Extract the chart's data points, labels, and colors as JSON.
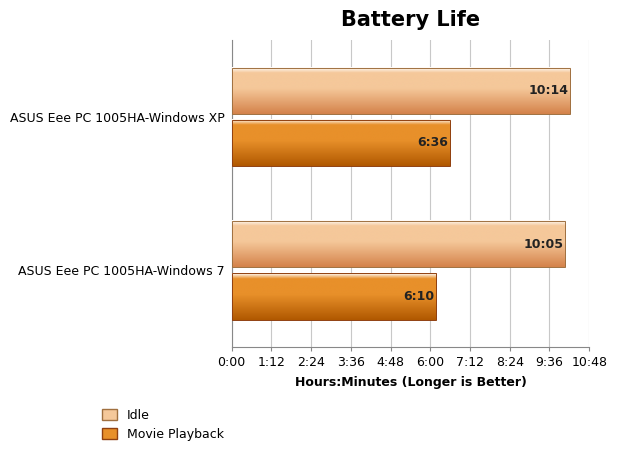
{
  "title": "Battery Life",
  "categories": [
    "ASUS Eee PC 1005HA-Windows XP",
    "ASUS Eee PC 1005HA-Windows 7"
  ],
  "series": [
    {
      "name": "Idle",
      "values_minutes": [
        614,
        605
      ],
      "labels": [
        "10:14",
        "10:05"
      ],
      "color_light": "#F5C89A",
      "color_dark": "#D4824A"
    },
    {
      "name": "Movie Playback",
      "values_minutes": [
        396,
        370
      ],
      "labels": [
        "6:36",
        "6:10"
      ],
      "color_light": "#E8902A",
      "color_dark": "#B05800"
    }
  ],
  "xlabel": "Hours:Minutes (Longer is Better)",
  "xlim_minutes": 648,
  "xticks_minutes": [
    0,
    72,
    144,
    216,
    288,
    360,
    432,
    504,
    576,
    648
  ],
  "xtick_labels": [
    "0:00",
    "1:12",
    "2:24",
    "3:36",
    "4:48",
    "6:00",
    "7:12",
    "8:24",
    "9:36",
    "10:48"
  ],
  "background_color": "#FFFFFF",
  "grid_color": "#C8C8C8",
  "title_fontsize": 15,
  "axis_label_fontsize": 9,
  "tick_fontsize": 9,
  "bar_label_fontsize": 9,
  "legend_fontsize": 9,
  "ytick_fontsize": 9
}
